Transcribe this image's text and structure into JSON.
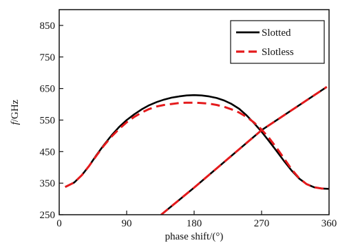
{
  "chart_data": {
    "type": "line",
    "title": "",
    "xlabel": "phase shift/(°)",
    "ylabel_italic": "f",
    "ylabel_rest": "/GHz",
    "xlim": [
      0,
      360
    ],
    "ylim": [
      250,
      900
    ],
    "x_ticks": [
      0,
      90,
      180,
      270,
      360
    ],
    "y_ticks": [
      250,
      350,
      450,
      550,
      650,
      750,
      850
    ],
    "grid": false,
    "legend_position": "top-right",
    "series": [
      {
        "name": "Slotted",
        "color": "#000000",
        "dash": "solid",
        "branches": [
          {
            "x": [
              8,
              20,
              30,
              40,
              50,
              60,
              70,
              80,
              90,
              100,
              110,
              120,
              130,
              140,
              150,
              160,
              170,
              180,
              190,
              200,
              210,
              220,
              230,
              240,
              250,
              260,
              270,
              280,
              290,
              300,
              310,
              320,
              330,
              340,
              350,
              360
            ],
            "y": [
              338,
              352,
              375,
              405,
              440,
              472,
              502,
              528,
              550,
              568,
              584,
              597,
              607,
              615,
              621,
              625,
              628,
              629,
              628,
              625,
              620,
              612,
              601,
              586,
              565,
              540,
              513,
              483,
              452,
              420,
              390,
              365,
              347,
              337,
              333,
              332
            ]
          },
          {
            "x": [
              136,
              180,
              270,
              357
            ],
            "y": [
              250,
              336,
              518,
              655
            ]
          }
        ]
      },
      {
        "name": "Slotless",
        "color": "#e41a1c",
        "dash": "dashed",
        "branches": [
          {
            "x": [
              8,
              20,
              30,
              40,
              50,
              60,
              70,
              80,
              90,
              100,
              110,
              120,
              130,
              140,
              150,
              160,
              170,
              180,
              190,
              200,
              210,
              220,
              230,
              240,
              250,
              260,
              270,
              280,
              290,
              300,
              310,
              320,
              330,
              340,
              350,
              360
            ],
            "y": [
              338,
              352,
              375,
              405,
              438,
              470,
              498,
              522,
              543,
              560,
              574,
              585,
              593,
              598,
              601,
              604,
              605,
              605,
              604,
              602,
              598,
              592,
              584,
              574,
              560,
              542,
              520,
              493,
              462,
              428,
              394,
              366,
              347,
              337,
              333,
              332
            ]
          },
          {
            "x": [
              136,
              180,
              270,
              357
            ],
            "y": [
              250,
              336,
              518,
              655
            ]
          }
        ]
      }
    ]
  }
}
